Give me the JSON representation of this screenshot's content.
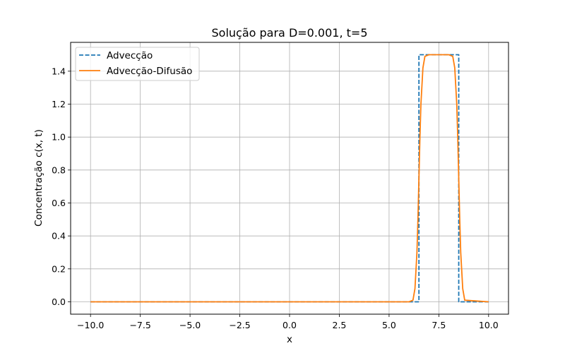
{
  "chart_data": {
    "type": "line",
    "title": "Solução para D=0.001, t=5",
    "xlabel": "x",
    "ylabel": "Concentração c(x, t)",
    "xlim": [
      -11.0,
      11.0
    ],
    "ylim": [
      -0.075,
      1.575
    ],
    "xticks": [
      -10.0,
      -7.5,
      -5.0,
      -2.5,
      0.0,
      2.5,
      5.0,
      7.5,
      10.0
    ],
    "xtick_labels": [
      "−10.0",
      "−7.5",
      "−5.0",
      "−2.5",
      "0.0",
      "2.5",
      "5.0",
      "7.5",
      "10.0"
    ],
    "yticks": [
      0.0,
      0.2,
      0.4,
      0.6,
      0.8,
      1.0,
      1.2,
      1.4
    ],
    "ytick_labels": [
      "0.0",
      "0.2",
      "0.4",
      "0.6",
      "0.8",
      "1.0",
      "1.2",
      "1.4"
    ],
    "grid": true,
    "legend_position": "top-left",
    "series": [
      {
        "name": "Advecção",
        "color": "#1f77b4",
        "style": "dashed",
        "x": [
          -10.0,
          6.5,
          6.5,
          8.5,
          8.5,
          10.0
        ],
        "y": [
          0.0,
          0.0,
          1.5,
          1.5,
          0.0,
          0.0
        ]
      },
      {
        "name": "Advecção-Difusão",
        "color": "#ff7f0e",
        "style": "solid",
        "x": [
          -10.0,
          6.0,
          6.2,
          6.3,
          6.4,
          6.45,
          6.5,
          6.55,
          6.6,
          6.7,
          6.8,
          7.0,
          8.0,
          8.2,
          8.3,
          8.4,
          8.45,
          8.5,
          8.55,
          8.6,
          8.7,
          8.8,
          10.0
        ],
        "y": [
          0.0,
          0.0,
          0.01,
          0.08,
          0.3,
          0.5,
          0.75,
          1.0,
          1.2,
          1.42,
          1.49,
          1.5,
          1.5,
          1.49,
          1.42,
          1.2,
          1.0,
          0.75,
          0.5,
          0.3,
          0.08,
          0.01,
          0.0
        ]
      }
    ]
  }
}
